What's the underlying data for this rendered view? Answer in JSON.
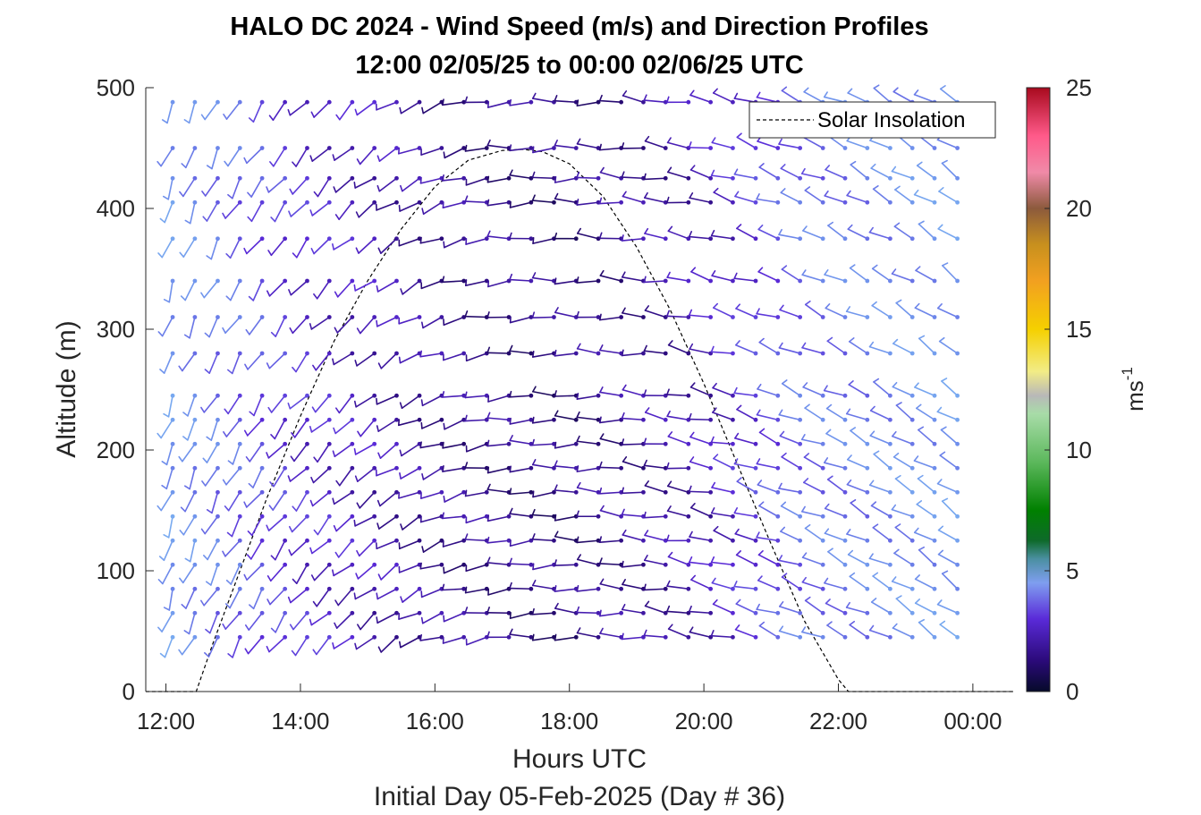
{
  "chart_data": {
    "type": "wind-barb-profile",
    "title_line1": "HALO DC 2024 - Wind Speed (m/s) and Direction Profiles",
    "title_line2": "12:00 02/05/25 to 00:00 02/06/25  UTC",
    "xlabel": "Hours UTC",
    "xlabel2": "Initial Day 05-Feb-2025 (Day # 36)",
    "ylabel": "Altitude (m)",
    "xlim": [
      11.7,
      24.6
    ],
    "ylim": [
      0,
      500
    ],
    "x_ticks": [
      12,
      14,
      16,
      18,
      20,
      22,
      24
    ],
    "x_tick_labels": [
      "12:00",
      "14:00",
      "16:00",
      "18:00",
      "20:00",
      "22:00",
      "00:00"
    ],
    "y_ticks": [
      0,
      100,
      200,
      300,
      400,
      500
    ],
    "y_tick_labels": [
      "0",
      "100",
      "200",
      "300",
      "400",
      "500"
    ],
    "colorbar": {
      "label": "ms",
      "label_superscript": "-1",
      "range": [
        0,
        25
      ],
      "ticks": [
        0,
        5,
        10,
        15,
        20,
        25
      ],
      "tick_labels": [
        "0",
        "5",
        "10",
        "15",
        "20",
        "25"
      ]
    },
    "legend": {
      "entries": [
        "Solar Insolation"
      ],
      "position": "top-right"
    },
    "solar_insolation": {
      "x": [
        11.7,
        12.45,
        12.7,
        13.0,
        13.5,
        14.0,
        14.5,
        15.0,
        15.5,
        16.0,
        16.5,
        17.0,
        17.3,
        17.6,
        18.0,
        18.5,
        19.0,
        19.5,
        20.0,
        20.5,
        21.0,
        21.5,
        22.0,
        22.15,
        24.6
      ],
      "y": [
        0,
        0,
        40,
        85,
        160,
        228,
        290,
        340,
        383,
        418,
        440,
        448,
        449,
        447,
        437,
        410,
        368,
        316,
        255,
        188,
        122,
        58,
        10,
        0,
        0
      ]
    },
    "barb_times": [
      12.1,
      12.43,
      12.77,
      13.1,
      13.43,
      13.77,
      14.1,
      14.43,
      14.77,
      15.1,
      15.43,
      15.77,
      16.1,
      16.43,
      16.77,
      17.1,
      17.43,
      17.77,
      18.1,
      18.43,
      18.77,
      19.1,
      19.43,
      19.77,
      20.1,
      20.43,
      20.77,
      21.1,
      21.43,
      21.77,
      22.1,
      22.43,
      22.77,
      23.1,
      23.43,
      23.77
    ],
    "barb_altitudes": [
      45,
      65,
      85,
      105,
      125,
      145,
      165,
      185,
      205,
      225,
      245,
      280,
      310,
      340,
      375,
      405,
      425,
      450,
      488
    ],
    "wind_model": {
      "direction_deg_by_hour": {
        "hours": [
          12,
          15,
          17,
          19,
          21,
          24
        ],
        "deg": [
          200,
          230,
          265,
          275,
          290,
          305
        ]
      },
      "speed_ms_by_hour": {
        "hours": [
          12,
          14,
          16,
          18,
          20,
          21.5,
          24
        ],
        "ms": [
          4.5,
          2.5,
          1.5,
          1.2,
          1.8,
          3.5,
          4.5
        ]
      }
    }
  }
}
